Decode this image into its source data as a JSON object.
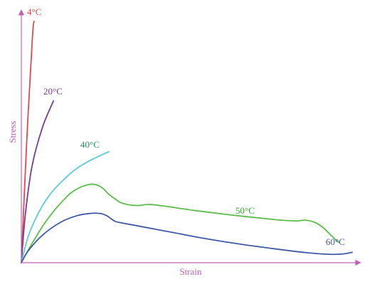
{
  "chart_data": {
    "type": "line",
    "title": "",
    "xlabel": "Strain",
    "ylabel": "Stress",
    "xlim": [
      0,
      100
    ],
    "ylim": [
      0,
      100
    ],
    "ticks": "none",
    "grid": false,
    "legend": "none (curves labeled directly)",
    "axis_color": "#c060b0",
    "series": [
      {
        "name": "4°C",
        "color": "#e04a4f",
        "x": [
          0,
          1.6,
          3.3,
          3.8
        ],
        "y": [
          0,
          50,
          93,
          100
        ]
      },
      {
        "name": "20°C",
        "color": "#7b3a8e",
        "x": [
          0,
          1.2,
          3.2,
          6.3,
          9.6
        ],
        "y": [
          0,
          20,
          40,
          56,
          67
        ]
      },
      {
        "name": "40°C",
        "color": "#5ec8dc",
        "x": [
          0,
          2.6,
          7.9,
          14.7,
          20.1,
          26.2
        ],
        "y": [
          0,
          13,
          27,
          37,
          42,
          46
        ]
      },
      {
        "name": "50°C",
        "color": "#5bbd4a",
        "x": [
          0,
          3.2,
          7.8,
          13.7,
          17.3,
          20.3,
          22.3,
          24.3,
          26.2,
          28.1,
          29.4,
          31.4,
          34.6,
          38.6,
          44.0,
          52.0,
          62.0,
          72.0,
          78.0,
          82.3,
          84.9,
          87.6,
          90.2,
          92.8,
          94.9
        ],
        "y": [
          0,
          8,
          18,
          27.5,
          31.0,
          32.4,
          32.3,
          30.9,
          28.3,
          26.4,
          25.1,
          24.2,
          23.7,
          24.1,
          23.2,
          21.6,
          19.9,
          18.4,
          17.6,
          17.3,
          17.6,
          16.8,
          14.6,
          11.1,
          8.4
        ]
      },
      {
        "name": "60°C",
        "color": "#3e5aa8",
        "x": [
          0,
          2.1,
          6.4,
          11.8,
          16.7,
          20.5,
          23.5,
          25.5,
          27.5,
          28.9,
          35.0,
          45.0,
          55.0,
          65.0,
          75.0,
          85.0,
          92.0,
          96.0,
          99.0
        ],
        "y": [
          0,
          5,
          11.5,
          16.8,
          19.5,
          20.4,
          20.4,
          19.5,
          17.6,
          16.8,
          15.2,
          12.6,
          10.0,
          7.8,
          5.9,
          4.2,
          3.5,
          3.6,
          4.3
        ]
      }
    ],
    "curve_labels": [
      "4°C",
      "20°C",
      "40°C",
      "50°C",
      "60°C"
    ]
  }
}
